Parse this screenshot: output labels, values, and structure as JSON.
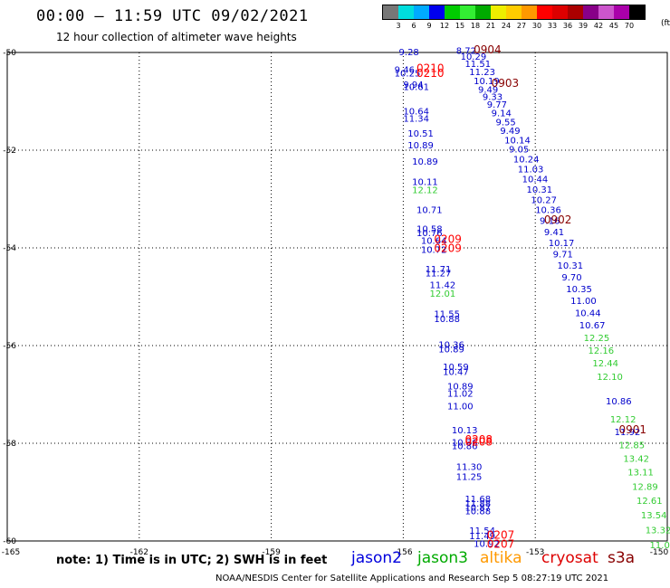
{
  "header": {
    "title": "00:00 – 11:59 UTC 09/02/2021",
    "subtitle": "12 hour collection of altimeter wave heights",
    "unit": "(ft)"
  },
  "color_scale": {
    "colors": [
      "#777777",
      "#00dddd",
      "#00aaff",
      "#0000ee",
      "#00cc00",
      "#33ee33",
      "#00aa00",
      "#eeee00",
      "#ffcc00",
      "#ff9900",
      "#ff0000",
      "#dd0000",
      "#aa0000",
      "#880088",
      "#cc55cc",
      "#aa00aa",
      "#000000"
    ],
    "labels": [
      "3",
      "6",
      "9",
      "12",
      "15",
      "18",
      "21",
      "24",
      "27",
      "30",
      "33",
      "36",
      "39",
      "42",
      "45",
      "70"
    ]
  },
  "chart_data": {
    "type": "scatter",
    "title": "00:00 – 11:59 UTC 09/02/2021",
    "x_ticks": [
      "-165",
      "-162",
      "-159",
      "-156",
      "-153",
      "-150"
    ],
    "y_ticks": [
      "-50",
      "-52",
      "-54",
      "-56",
      "-58",
      "-60"
    ],
    "xlim": [
      -165,
      -150
    ],
    "ylim": [
      -60,
      -50
    ],
    "grid": true,
    "series": [
      {
        "name": "jason2",
        "color": "#0000cc",
        "points": [
          [
            -156.1,
            -50.06,
            "9.28"
          ],
          [
            -156.2,
            -50.42,
            "9.46"
          ],
          [
            -156.2,
            -50.49,
            "10.25"
          ],
          [
            -156.0,
            -50.72,
            "9.94"
          ],
          [
            -156.0,
            -50.77,
            "10.61"
          ],
          [
            -156.0,
            -51.27,
            "10.64"
          ],
          [
            -156.0,
            -51.42,
            "11.34"
          ],
          [
            -155.9,
            -51.72,
            "10.51"
          ],
          [
            -155.9,
            -51.96,
            "10.89"
          ],
          [
            -155.8,
            -52.3,
            "10.89"
          ],
          [
            -155.8,
            -52.71,
            "10.11"
          ],
          [
            -155.7,
            -53.29,
            "10.71"
          ],
          [
            -155.7,
            -53.68,
            "10.58"
          ],
          [
            -155.7,
            -53.76,
            "10.76"
          ],
          [
            -155.6,
            -53.92,
            "10.64"
          ],
          [
            -155.6,
            -54.1,
            "10.72"
          ],
          [
            -155.5,
            -54.5,
            "11.71"
          ],
          [
            -155.5,
            -54.58,
            "11.27"
          ],
          [
            -155.4,
            -54.82,
            "11.42"
          ],
          [
            -155.3,
            -55.42,
            "11.55"
          ],
          [
            -155.3,
            -55.52,
            "10.88"
          ],
          [
            -155.2,
            -56.05,
            "10.36"
          ],
          [
            -155.2,
            -56.14,
            "10.89"
          ],
          [
            -155.1,
            -56.5,
            "10.59"
          ],
          [
            -155.1,
            -56.6,
            "10.47"
          ],
          [
            -155.0,
            -56.9,
            "10.89"
          ],
          [
            -155.0,
            -57.05,
            "11.02"
          ],
          [
            -155.0,
            -57.31,
            "11.00"
          ],
          [
            -154.9,
            -57.8,
            "10.13"
          ],
          [
            -154.9,
            -58.05,
            "10.36"
          ],
          [
            -154.9,
            -58.12,
            "10.86"
          ],
          [
            -154.8,
            -58.55,
            "11.30"
          ],
          [
            -154.8,
            -58.75,
            "11.25"
          ],
          [
            -154.6,
            -59.2,
            "11.68"
          ],
          [
            -154.6,
            -59.3,
            "11.88"
          ],
          [
            -154.6,
            -59.38,
            "10.87"
          ],
          [
            -154.6,
            -59.45,
            "10.88"
          ],
          [
            -154.5,
            -59.85,
            "11.54"
          ],
          [
            -154.5,
            -59.96,
            "11.49"
          ],
          [
            -154.4,
            -60.12,
            "10.92"
          ],
          [
            -154.8,
            -50.03,
            "8.72"
          ],
          [
            -154.7,
            -50.15,
            "10.29"
          ],
          [
            -154.6,
            -50.3,
            "11.51"
          ],
          [
            -154.5,
            -50.46,
            "11.23"
          ],
          [
            -154.4,
            -50.65,
            "10.19"
          ],
          [
            -154.3,
            -50.82,
            "9.49"
          ],
          [
            -154.2,
            -50.97,
            "9.33"
          ],
          [
            -154.1,
            -51.13,
            "9.77"
          ],
          [
            -154.0,
            -51.31,
            "9.14"
          ],
          [
            -153.9,
            -51.49,
            "9.55"
          ],
          [
            -153.8,
            -51.67,
            "9.49"
          ],
          [
            -153.7,
            -51.86,
            "10.14"
          ],
          [
            -153.6,
            -52.05,
            "9.05"
          ],
          [
            -153.5,
            -52.25,
            "10.24"
          ],
          [
            -153.4,
            -52.45,
            "11.03"
          ],
          [
            -153.3,
            -52.66,
            "10.44"
          ],
          [
            -153.2,
            -52.87,
            "10.31"
          ],
          [
            -153.1,
            -53.08,
            "10.27"
          ],
          [
            -153.0,
            -53.29,
            "10.36"
          ],
          [
            -152.9,
            -53.51,
            "9.16"
          ],
          [
            -152.8,
            -53.74,
            "9.41"
          ],
          [
            -152.7,
            -53.96,
            "10.17"
          ],
          [
            -152.6,
            -54.19,
            "9.71"
          ],
          [
            -152.5,
            -54.43,
            "10.31"
          ],
          [
            -152.4,
            -54.67,
            "9.70"
          ],
          [
            -152.3,
            -54.91,
            "10.35"
          ],
          [
            -152.2,
            -55.15,
            "11.00"
          ],
          [
            -152.1,
            -55.4,
            "10.44"
          ],
          [
            -152.0,
            -55.65,
            "10.67"
          ],
          [
            -151.4,
            -57.2,
            "10.86"
          ],
          [
            -151.2,
            -57.83,
            "11.92"
          ]
        ]
      },
      {
        "name": "jason3",
        "color": "#33cc33",
        "points": [
          [
            -155.8,
            -52.88,
            "12.12"
          ],
          [
            -155.4,
            -55.0,
            "12.01"
          ],
          [
            -151.9,
            -55.91,
            "12.25"
          ],
          [
            -151.8,
            -56.17,
            "12.16"
          ],
          [
            -151.7,
            -56.43,
            "12.44"
          ],
          [
            -151.6,
            -56.7,
            "12.10"
          ],
          [
            -151.3,
            -57.57,
            "12.12"
          ],
          [
            -151.1,
            -58.1,
            "12.85"
          ],
          [
            -151.0,
            -58.38,
            "13.42"
          ],
          [
            -150.9,
            -58.66,
            "13.11"
          ],
          [
            -150.8,
            -58.95,
            "12.89"
          ],
          [
            -150.7,
            -59.24,
            "12.61"
          ],
          [
            -150.6,
            -59.54,
            "13.54"
          ],
          [
            -150.5,
            -59.84,
            "13.32"
          ],
          [
            -150.4,
            -60.15,
            "11.0"
          ]
        ]
      }
    ],
    "time_labels": [
      {
        "x": -154.4,
        "y": -50.02,
        "text": "0904",
        "color": "#880000"
      },
      {
        "x": -154.0,
        "y": -50.7,
        "text": "0903",
        "color": "#880000"
      },
      {
        "x": -152.8,
        "y": -53.5,
        "text": "0902",
        "color": "#880000"
      },
      {
        "x": -151.1,
        "y": -57.8,
        "text": "0901",
        "color": "#880000"
      },
      {
        "x": -155.7,
        "y": -50.4,
        "text": "0210",
        "color": "#ff0000"
      },
      {
        "x": -155.7,
        "y": -50.5,
        "text": "0210",
        "color": "#ff0000"
      },
      {
        "x": -155.3,
        "y": -53.9,
        "text": "0209",
        "color": "#ff0000"
      },
      {
        "x": -155.3,
        "y": -54.08,
        "text": "0209",
        "color": "#ff0000"
      },
      {
        "x": -154.6,
        "y": -58.0,
        "text": "0208",
        "color": "#ff0000"
      },
      {
        "x": -154.6,
        "y": -58.05,
        "text": "0208",
        "color": "#ff0000"
      },
      {
        "x": -154.1,
        "y": -59.95,
        "text": "0207",
        "color": "#ff0000"
      },
      {
        "x": -154.1,
        "y": -60.14,
        "text": "0207",
        "color": "#ff0000"
      }
    ]
  },
  "footer": {
    "note": "note:  1) Time is in UTC;  2) SWH is in feet",
    "legend": [
      {
        "label": "jason2",
        "color": "#0000dd"
      },
      {
        "label": "jason3",
        "color": "#00aa00"
      },
      {
        "label": "altika",
        "color": "#ff9900"
      },
      {
        "label": "cryosat",
        "color": "#dd0000"
      },
      {
        "label": "s3a",
        "color": "#880000"
      }
    ],
    "credit": "NOAA/NESDIS Center for Satellite Applications and Research    Sep  5 08:27:19 UTC 2021"
  }
}
